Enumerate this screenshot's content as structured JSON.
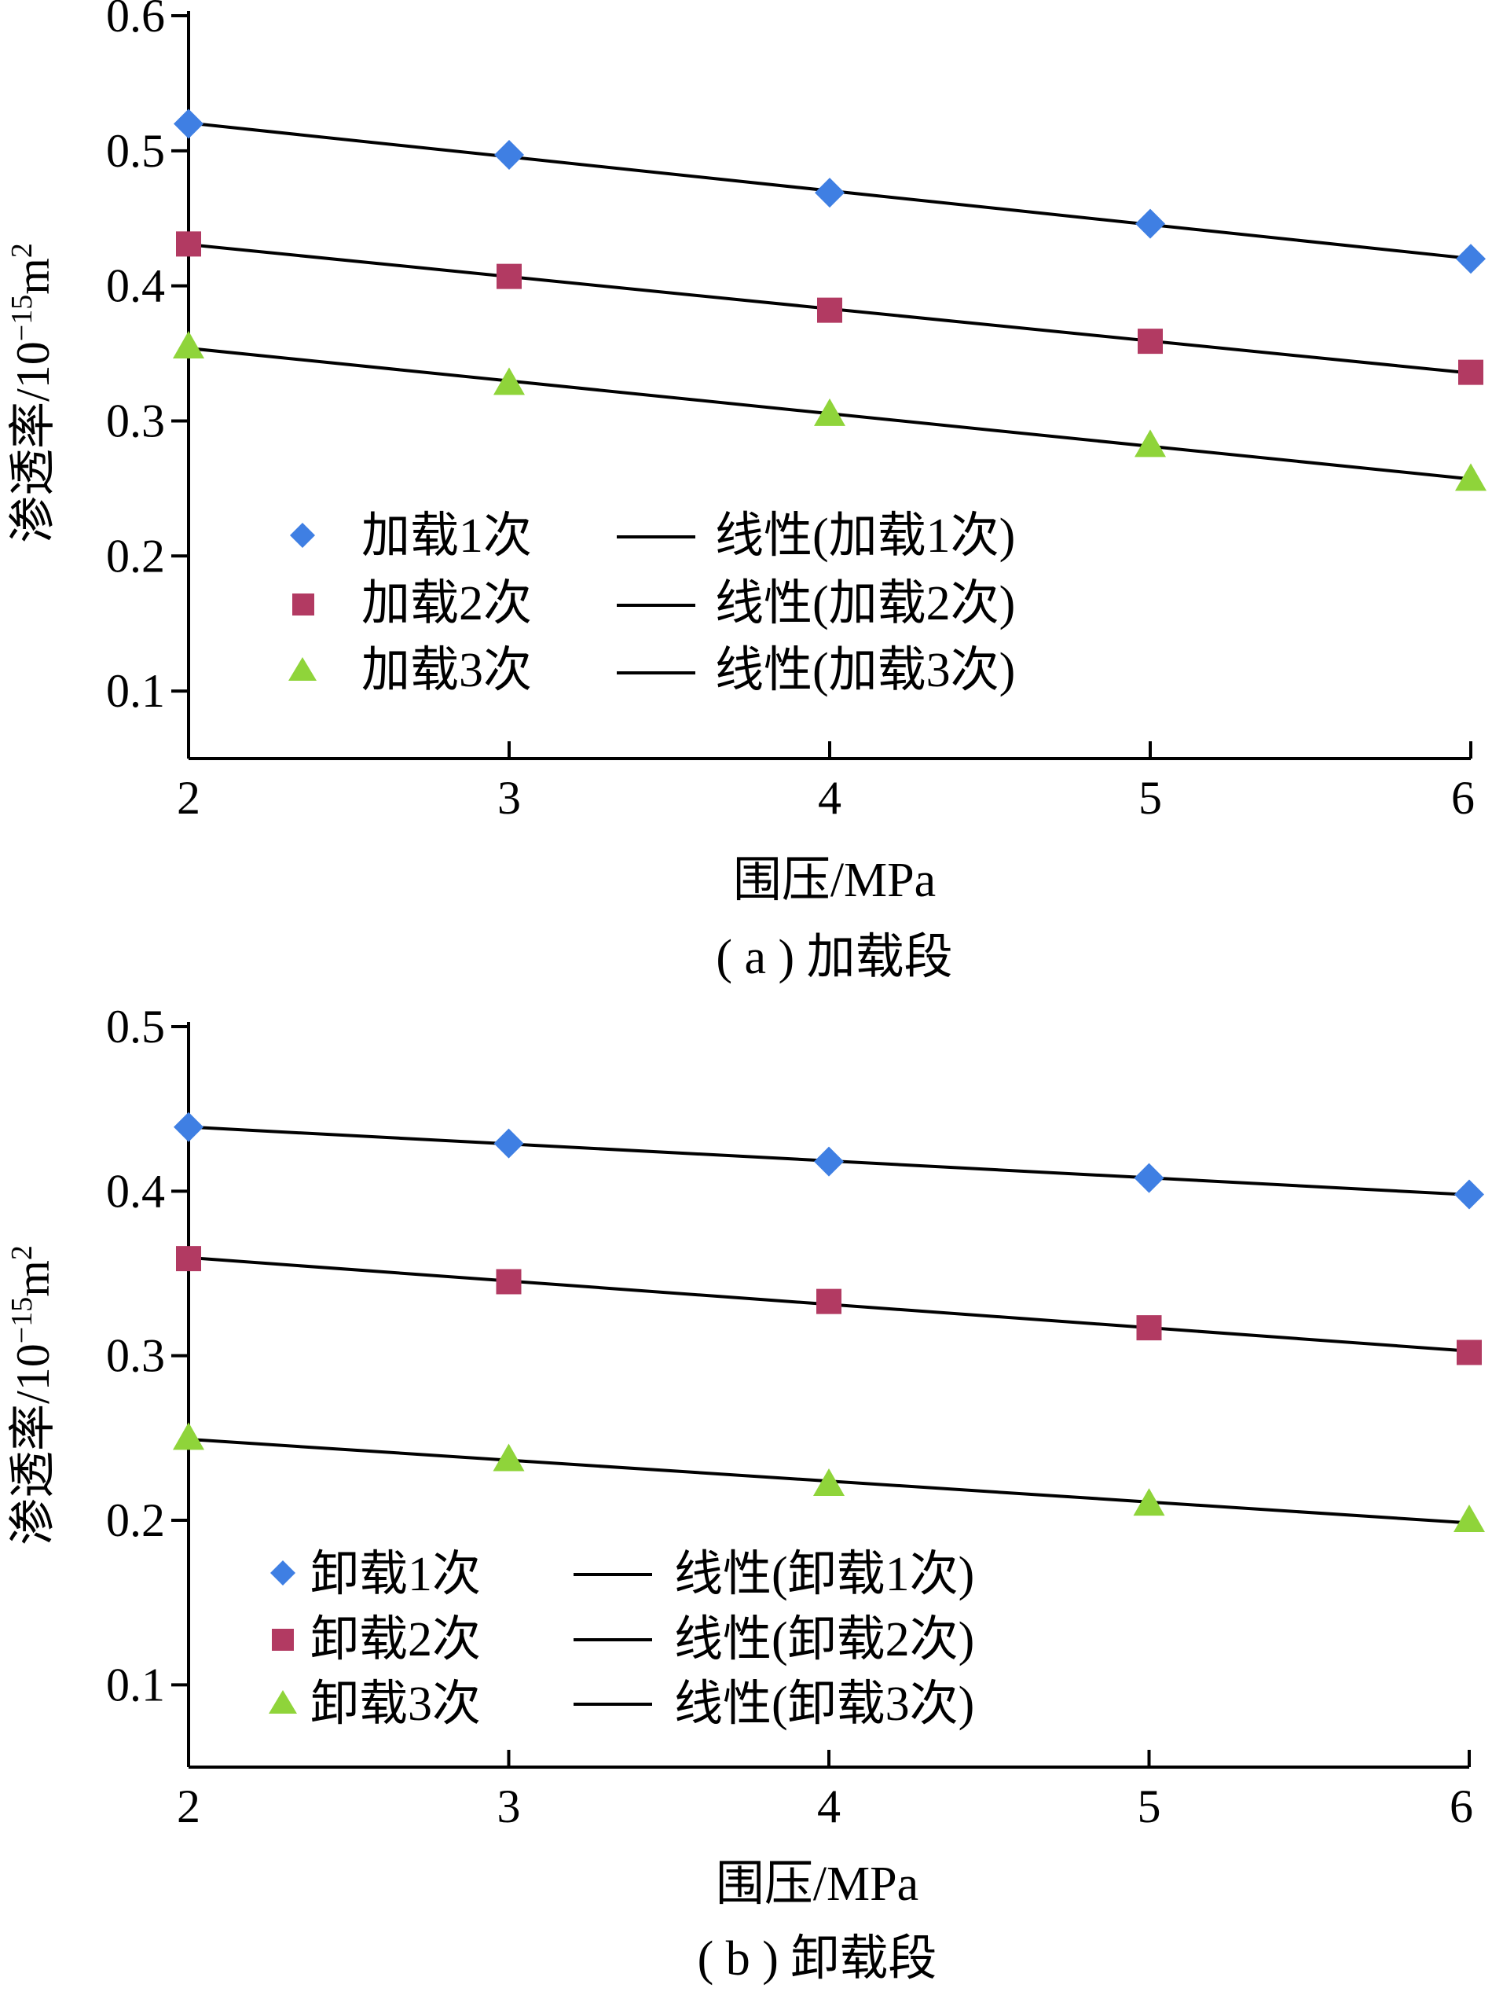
{
  "chart_data": [
    {
      "type": "scatter",
      "caption": "( a ) 加载段",
      "xlabel": "围压/MPa",
      "ylabel_main": "渗透率/10",
      "ylabel_sup1": "−15",
      "ylabel_unit": "m",
      "ylabel_sup2": "2",
      "xlim": [
        2,
        6
      ],
      "ylim": [
        0.05,
        0.6
      ],
      "xticks": [
        2,
        3,
        4,
        5,
        6
      ],
      "yticks": [
        0.1,
        0.2,
        0.3,
        0.4,
        0.5,
        0.6
      ],
      "xtick_labels": [
        "2",
        "3",
        "4",
        "5",
        "6"
      ],
      "ytick_labels": [
        "0.1",
        "0.2",
        "0.3",
        "0.4",
        "0.5",
        "0.6"
      ],
      "grid": false,
      "legend_position": "lower-left",
      "x": [
        2,
        3,
        4,
        5,
        6
      ],
      "series": [
        {
          "name": "加载1次",
          "fit_name": "线性(加载1次)",
          "marker": "diamond",
          "color": "#3f7fe3",
          "values": [
            0.52,
            0.497,
            0.469,
            0.446,
            0.42
          ]
        },
        {
          "name": "加载2次",
          "fit_name": "线性(加载2次)",
          "marker": "square",
          "color": "#b23a62",
          "values": [
            0.431,
            0.407,
            0.382,
            0.359,
            0.336
          ]
        },
        {
          "name": "加载3次",
          "fit_name": "线性(加载3次)",
          "marker": "triangle",
          "color": "#8fd43a",
          "values": [
            0.355,
            0.328,
            0.305,
            0.282,
            0.257
          ]
        }
      ]
    },
    {
      "type": "scatter",
      "caption": "( b ) 卸载段",
      "xlabel": "围压/MPa",
      "ylabel_main": "渗透率/10",
      "ylabel_sup1": "−15",
      "ylabel_unit": "m",
      "ylabel_sup2": "2",
      "xlim": [
        2,
        6
      ],
      "ylim": [
        0.05,
        0.5
      ],
      "xticks": [
        2,
        3,
        4,
        5,
        6
      ],
      "yticks": [
        0.1,
        0.2,
        0.3,
        0.4,
        0.5
      ],
      "xtick_labels": [
        "2",
        "3",
        "4",
        "5",
        "6"
      ],
      "ytick_labels": [
        "0.1",
        "0.2",
        "0.3",
        "0.4",
        "0.5"
      ],
      "grid": false,
      "legend_position": "lower-left",
      "x": [
        2,
        3,
        4,
        5,
        6
      ],
      "series": [
        {
          "name": "卸载1次",
          "fit_name": "线性(卸载1次)",
          "marker": "diamond",
          "color": "#3f7fe3",
          "values": [
            0.439,
            0.429,
            0.418,
            0.408,
            0.398
          ]
        },
        {
          "name": "卸载2次",
          "fit_name": "线性(卸载2次)",
          "marker": "square",
          "color": "#b23a62",
          "values": [
            0.359,
            0.345,
            0.333,
            0.317,
            0.302
          ]
        },
        {
          "name": "卸载3次",
          "fit_name": "线性(卸载3次)",
          "marker": "triangle",
          "color": "#8fd43a",
          "values": [
            0.25,
            0.237,
            0.222,
            0.21,
            0.2
          ]
        }
      ]
    }
  ]
}
